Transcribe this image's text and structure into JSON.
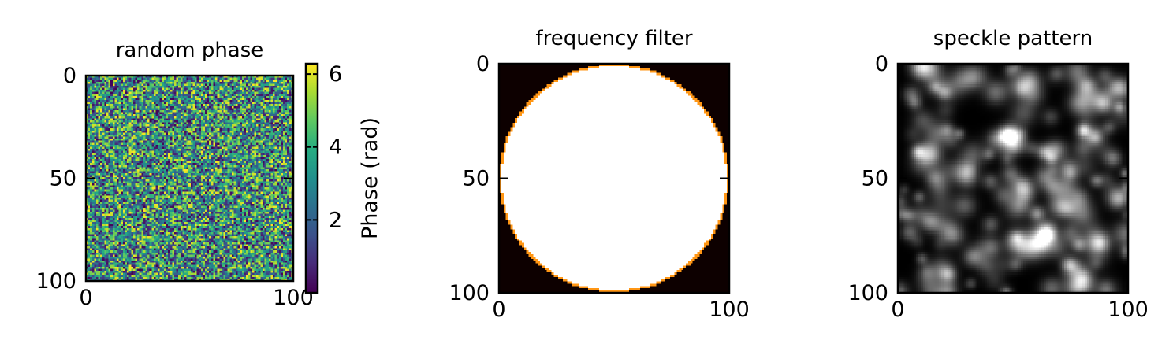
{
  "chart_data": [
    {
      "type": "heatmap",
      "title": "random phase",
      "xlim": [
        0,
        100
      ],
      "ylim": [
        100,
        0
      ],
      "x_ticks": [
        0,
        100
      ],
      "y_ticks": [
        0,
        50,
        100
      ],
      "colormap": "viridis",
      "grid": false,
      "colorbar": {
        "label": "Phase (rad)",
        "range": [
          0,
          6.283
        ],
        "ticks": [
          2,
          4,
          6
        ]
      }
    },
    {
      "type": "heatmap",
      "title": "frequency filter",
      "xlim": [
        0,
        100
      ],
      "ylim": [
        100,
        0
      ],
      "x_ticks": [
        0,
        100
      ],
      "y_ticks": [
        0,
        50,
        100
      ],
      "colormap": "hot",
      "grid": false,
      "filter": {
        "shape": "circle",
        "center": [
          50,
          50
        ],
        "radius": 50
      }
    },
    {
      "type": "heatmap",
      "title": "speckle pattern",
      "xlim": [
        0,
        100
      ],
      "ylim": [
        100,
        0
      ],
      "x_ticks": [
        0,
        100
      ],
      "y_ticks": [
        0,
        50,
        100
      ],
      "colormap": "gray",
      "grid": false
    }
  ],
  "colors": {
    "filter_background": "#0d0000",
    "filter_disk": "#ffffff",
    "filter_edge": "#ff9900",
    "axes": "#000000"
  }
}
